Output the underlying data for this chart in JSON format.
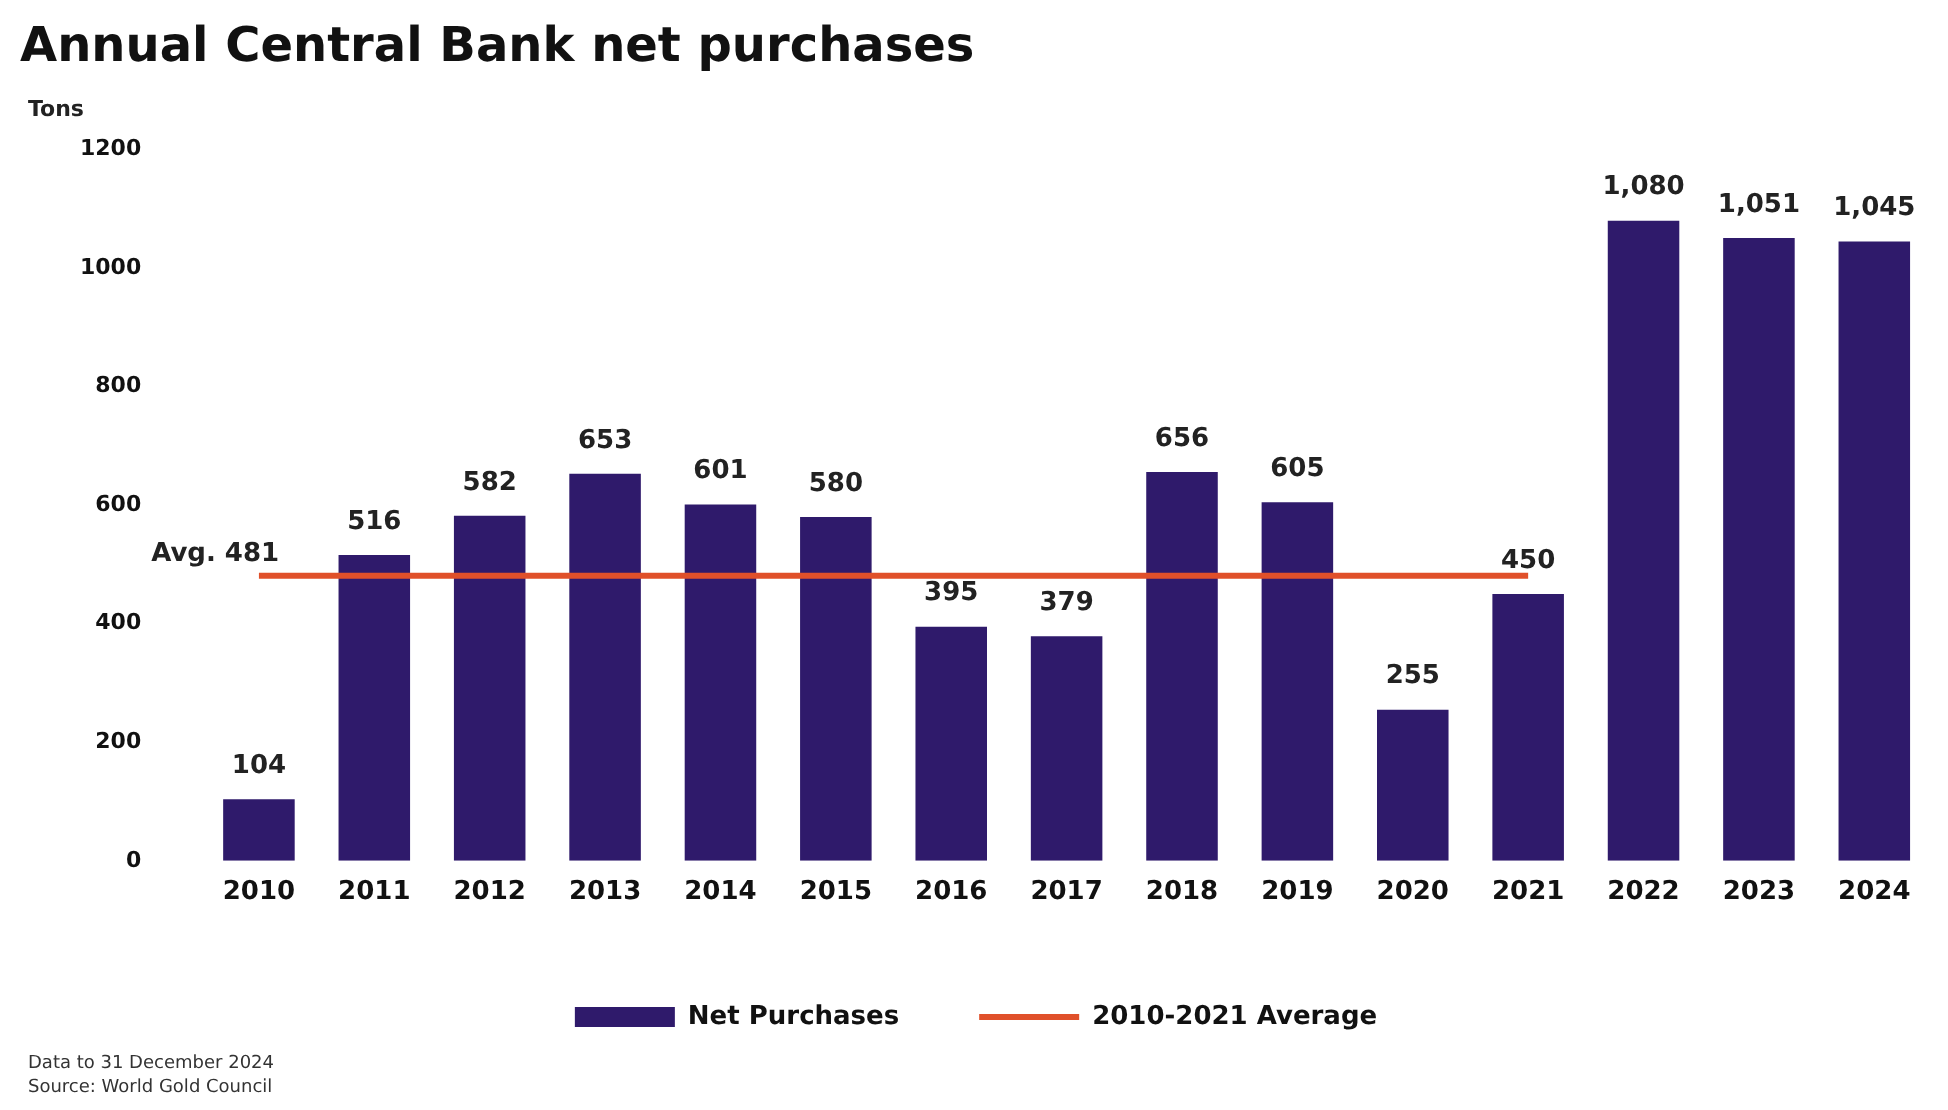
{
  "chart_data": {
    "type": "bar",
    "title": "Annual Central Bank net purchases",
    "ylabel": "Tons",
    "categories": [
      "2010",
      "2011",
      "2012",
      "2013",
      "2014",
      "2015",
      "2016",
      "2017",
      "2018",
      "2019",
      "2020",
      "2021",
      "2022",
      "2023",
      "2024"
    ],
    "series": [
      {
        "name": "Net Purchases",
        "color": "#2f1a6b",
        "values": [
          104,
          516,
          582,
          653,
          601,
          580,
          395,
          379,
          656,
          605,
          255,
          450,
          1080,
          1051,
          1045
        ],
        "value_labels": [
          "104",
          "516",
          "582",
          "653",
          "601",
          "580",
          "395",
          "379",
          "656",
          "605",
          "255",
          "450",
          "1,080",
          "1,051",
          "1,045"
        ]
      },
      {
        "name": "2010-2021 Average",
        "type": "line",
        "color": "#e0502a",
        "marker": "none",
        "line_style": "solid",
        "values": [
          481,
          481,
          481,
          481,
          481,
          481,
          481,
          481,
          481,
          481,
          481,
          481,
          null,
          null,
          null
        ]
      }
    ],
    "ylim": [
      0,
      1200
    ],
    "yticks": [
      0,
      200,
      400,
      600,
      800,
      1000,
      1200
    ],
    "grid": false,
    "legend": "bottom",
    "annotations": [
      {
        "text": "Avg. 481",
        "x": "2010",
        "y": 481
      },
      "Data to 31 December 2024",
      "Source: World Gold Council"
    ]
  }
}
